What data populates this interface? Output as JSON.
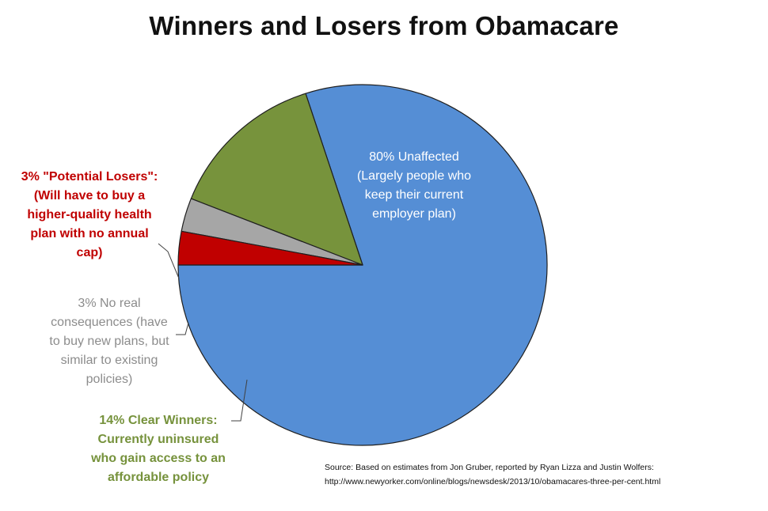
{
  "chart_data": {
    "type": "pie",
    "title": "Winners and Losers from Obamacare",
    "slices": [
      {
        "key": "unaffected",
        "value": 80,
        "color": "#558ed5",
        "label_lines": [
          "80% Unaffected",
          "(Largely people who",
          "keep their current",
          "employer plan)"
        ],
        "label_color": "#ffffff"
      },
      {
        "key": "winners",
        "value": 14,
        "color": "#77933c",
        "label_lines": [
          "14% Clear Winners:",
          "Currently uninsured",
          "who gain access to an",
          "affordable policy"
        ],
        "label_color": "#76923c"
      },
      {
        "key": "noreal",
        "value": 3,
        "color": "#a6a6a6",
        "label_lines": [
          "3% No real",
          "consequences (have",
          "to buy new plans, but",
          "similar to existing",
          "policies)"
        ],
        "label_color": "#8c8c8c"
      },
      {
        "key": "losers",
        "value": 3,
        "color": "#c00000",
        "label_lines": [
          "3% \"Potential Losers\":",
          "(Will have to buy a",
          "higher-quality health",
          "plan with no annual",
          "cap)"
        ],
        "label_color": "#c00000"
      }
    ],
    "start_angle_deg": 180,
    "direction": "counterclockwise",
    "legend": "none"
  },
  "source_lines": [
    "Source:  Based on estimates from Jon Gruber, reported by Ryan Lizza and Justin Wolfers:",
    "http://www.newyorker.com/online/blogs/newsdesk/2013/10/obamacares-three-per-cent.html"
  ]
}
